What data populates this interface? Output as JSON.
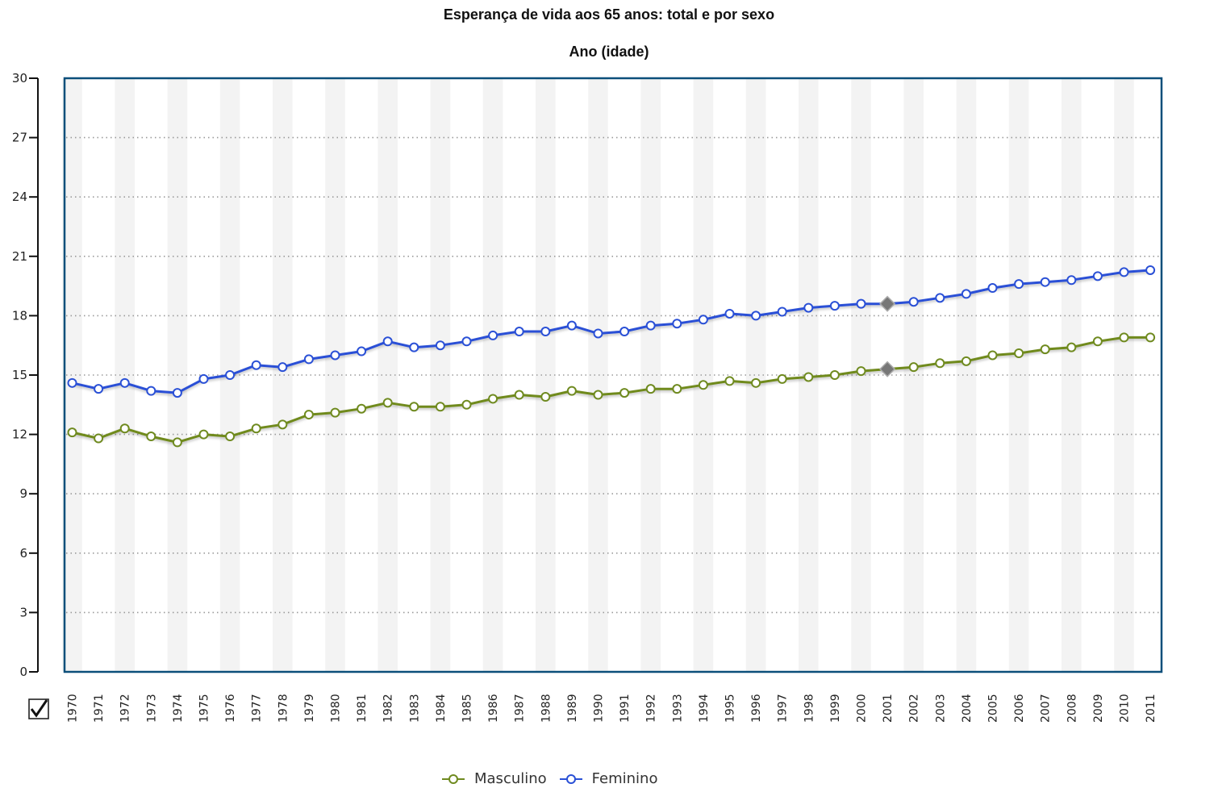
{
  "chart_data": {
    "type": "line",
    "title": "Esperança de vida aos 65 anos: total e por sexo",
    "subtitle": "Ano (idade)",
    "xlabel": "",
    "ylabel": "",
    "ylim": [
      0,
      30
    ],
    "yticks": [
      "0",
      "3",
      "6",
      "9",
      "12",
      "15",
      "18",
      "21",
      "24",
      "27",
      "30"
    ],
    "categories": [
      "1970",
      "1971",
      "1972",
      "1973",
      "1974",
      "1975",
      "1976",
      "1977",
      "1978",
      "1979",
      "1980",
      "1981",
      "1982",
      "1983",
      "1984",
      "1985",
      "1986",
      "1987",
      "1988",
      "1989",
      "1990",
      "1991",
      "1992",
      "1993",
      "1994",
      "1995",
      "1996",
      "1997",
      "1998",
      "1999",
      "2000",
      "2001",
      "2002",
      "2003",
      "2004",
      "2005",
      "2006",
      "2007",
      "2008",
      "2009",
      "2010",
      "2011"
    ],
    "grid": "horizontal-dotted",
    "legend_position": "bottom",
    "series": [
      {
        "name": "Masculino",
        "color": "#6f8a1f",
        "values": [
          12.1,
          11.8,
          12.3,
          11.9,
          11.6,
          12.0,
          11.9,
          12.3,
          12.5,
          13.0,
          13.1,
          13.3,
          13.6,
          13.4,
          13.4,
          13.5,
          13.8,
          14.0,
          13.9,
          14.2,
          14.0,
          14.1,
          14.3,
          14.3,
          14.5,
          14.7,
          14.6,
          14.8,
          14.9,
          15.0,
          15.2,
          15.3,
          15.4,
          15.6,
          15.7,
          16.0,
          16.1,
          16.3,
          16.4,
          16.7,
          16.9,
          16.9
        ]
      },
      {
        "name": "Feminino",
        "color": "#2a50d6",
        "values": [
          14.6,
          14.3,
          14.6,
          14.2,
          14.1,
          14.8,
          15.0,
          15.5,
          15.4,
          15.8,
          16.0,
          16.2,
          16.7,
          16.4,
          16.5,
          16.7,
          17.0,
          17.2,
          17.2,
          17.5,
          17.1,
          17.2,
          17.5,
          17.6,
          17.8,
          18.1,
          18.0,
          18.2,
          18.4,
          18.5,
          18.6,
          18.6,
          18.7,
          18.9,
          19.1,
          19.4,
          19.6,
          19.7,
          19.8,
          20.0,
          20.2,
          20.3
        ]
      }
    ],
    "highlighted_category": "2001"
  },
  "colors": {
    "plot_border": "#0b4f7a",
    "band": "#f3f3f3"
  },
  "icons": {
    "checkbox": "checkbox-checked-icon"
  }
}
